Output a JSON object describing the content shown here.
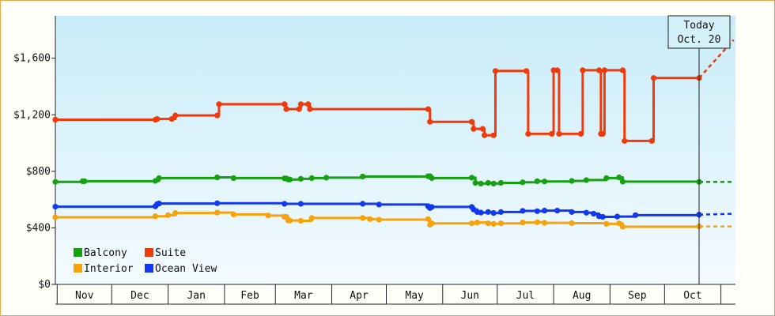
{
  "chart_data": {
    "type": "line",
    "title": "",
    "xlabel": "",
    "ylabel": "",
    "ylim": [
      0,
      1900
    ],
    "y_ticks": [
      {
        "value": 0,
        "label": "$0"
      },
      {
        "value": 400,
        "label": "$400"
      },
      {
        "value": 800,
        "label": "$800"
      },
      {
        "value": 1200,
        "label": "$1,200"
      },
      {
        "value": 1600,
        "label": "$1,600"
      }
    ],
    "x_unit": "day index from Nov 1",
    "xlim": [
      -1,
      373
    ],
    "month_labels": [
      {
        "label": "Nov",
        "start": 0,
        "end": 30
      },
      {
        "label": "Dec",
        "start": 30,
        "end": 61
      },
      {
        "label": "Jan",
        "start": 61,
        "end": 92
      },
      {
        "label": "Feb",
        "start": 92,
        "end": 120
      },
      {
        "label": "Mar",
        "start": 120,
        "end": 151
      },
      {
        "label": "Apr",
        "start": 151,
        "end": 181
      },
      {
        "label": "May",
        "start": 181,
        "end": 212
      },
      {
        "label": "Jun",
        "start": 212,
        "end": 242
      },
      {
        "label": "Jul",
        "start": 242,
        "end": 273
      },
      {
        "label": "Aug",
        "start": 273,
        "end": 304
      },
      {
        "label": "Sep",
        "start": 304,
        "end": 334
      },
      {
        "label": "Oct",
        "start": 334,
        "end": 365
      }
    ],
    "today": {
      "line1": "Today",
      "line2": "Oct. 20",
      "x": 353
    },
    "grid": false,
    "legend_placement": "bottom-left",
    "series": [
      {
        "name": "Suite",
        "color": "#f03a0c",
        "points": [
          [
            -1,
            1165
          ],
          [
            54,
            1165
          ],
          [
            55,
            1170
          ],
          [
            63,
            1170
          ],
          [
            65,
            1195
          ],
          [
            88,
            1195
          ],
          [
            89,
            1275
          ],
          [
            125,
            1275
          ],
          [
            126,
            1240
          ],
          [
            133,
            1240
          ],
          [
            134,
            1275
          ],
          [
            138,
            1275
          ],
          [
            139,
            1240
          ],
          [
            204,
            1240
          ],
          [
            205,
            1150
          ],
          [
            228,
            1150
          ],
          [
            229,
            1100
          ],
          [
            234,
            1100
          ],
          [
            235,
            1055
          ],
          [
            240,
            1055
          ],
          [
            241,
            1510
          ],
          [
            258,
            1510
          ],
          [
            259,
            1065
          ],
          [
            272,
            1065
          ],
          [
            273,
            1515
          ],
          [
            275,
            1515
          ],
          [
            276,
            1065
          ],
          [
            288,
            1065
          ],
          [
            289,
            1515
          ],
          [
            298,
            1515
          ],
          [
            299,
            1065
          ],
          [
            300,
            1065
          ],
          [
            301,
            1515
          ],
          [
            311,
            1515
          ],
          [
            312,
            1015
          ],
          [
            327,
            1015
          ],
          [
            328,
            1460
          ],
          [
            353,
            1460
          ]
        ],
        "markers": [
          -1,
          54,
          55,
          63,
          65,
          88,
          89,
          125,
          126,
          133,
          134,
          138,
          139,
          204,
          205,
          228,
          229,
          234,
          235,
          240,
          241,
          258,
          259,
          272,
          273,
          275,
          276,
          288,
          289,
          298,
          299,
          300,
          301,
          311,
          312,
          327,
          328,
          353
        ],
        "projection": [
          [
            353,
            1460
          ],
          [
            372,
            1730
          ]
        ]
      },
      {
        "name": "Balcony",
        "color": "#16a012",
        "points": [
          [
            -1,
            725
          ],
          [
            14,
            730
          ],
          [
            54,
            732
          ],
          [
            56,
            752
          ],
          [
            88,
            757
          ],
          [
            97,
            752
          ],
          [
            125,
            750
          ],
          [
            127,
            742
          ],
          [
            134,
            747
          ],
          [
            140,
            752
          ],
          [
            148,
            755
          ],
          [
            168,
            763
          ],
          [
            204,
            765
          ],
          [
            206,
            752
          ],
          [
            228,
            755
          ],
          [
            230,
            718
          ],
          [
            233,
            713
          ],
          [
            237,
            718
          ],
          [
            240,
            713
          ],
          [
            244,
            718
          ],
          [
            256,
            722
          ],
          [
            264,
            730
          ],
          [
            268,
            728
          ],
          [
            283,
            732
          ],
          [
            291,
            738
          ],
          [
            302,
            752
          ],
          [
            309,
            757
          ],
          [
            311,
            727
          ],
          [
            353,
            725
          ]
        ],
        "markers": [
          -1,
          14,
          15,
          54,
          56,
          88,
          97,
          125,
          126,
          127,
          128,
          134,
          140,
          148,
          168,
          204,
          205,
          206,
          228,
          230,
          233,
          237,
          240,
          244,
          256,
          264,
          268,
          283,
          291,
          302,
          309,
          311,
          353
        ],
        "projection": [
          [
            353,
            725
          ],
          [
            372,
            725
          ]
        ]
      },
      {
        "name": "Ocean View",
        "color": "#1238f0",
        "points": [
          [
            -1,
            550
          ],
          [
            54,
            552
          ],
          [
            55,
            568
          ],
          [
            56,
            572
          ],
          [
            88,
            574
          ],
          [
            125,
            570
          ],
          [
            134,
            570
          ],
          [
            168,
            570
          ],
          [
            177,
            565
          ],
          [
            204,
            553
          ],
          [
            205,
            540
          ],
          [
            206,
            548
          ],
          [
            228,
            548
          ],
          [
            229,
            530
          ],
          [
            231,
            512
          ],
          [
            233,
            508
          ],
          [
            237,
            512
          ],
          [
            240,
            505
          ],
          [
            244,
            512
          ],
          [
            256,
            520
          ],
          [
            264,
            518
          ],
          [
            268,
            522
          ],
          [
            275,
            522
          ],
          [
            283,
            512
          ],
          [
            291,
            507
          ],
          [
            295,
            500
          ],
          [
            298,
            482
          ],
          [
            300,
            478
          ],
          [
            308,
            480
          ],
          [
            318,
            490
          ],
          [
            353,
            493
          ]
        ],
        "markers": [
          -1,
          54,
          55,
          56,
          88,
          125,
          134,
          168,
          177,
          204,
          205,
          206,
          228,
          229,
          231,
          233,
          237,
          240,
          244,
          256,
          264,
          268,
          275,
          283,
          291,
          295,
          298,
          300,
          308,
          318,
          353
        ],
        "projection": [
          [
            353,
            493
          ],
          [
            372,
            500
          ]
        ]
      },
      {
        "name": "Interior",
        "color": "#f7a20b",
        "points": [
          [
            -1,
            475
          ],
          [
            54,
            482
          ],
          [
            61,
            490
          ],
          [
            65,
            505
          ],
          [
            88,
            508
          ],
          [
            97,
            495
          ],
          [
            116,
            487
          ],
          [
            125,
            478
          ],
          [
            127,
            452
          ],
          [
            134,
            450
          ],
          [
            140,
            470
          ],
          [
            168,
            470
          ],
          [
            172,
            462
          ],
          [
            177,
            458
          ],
          [
            204,
            462
          ],
          [
            205,
            422
          ],
          [
            206,
            432
          ],
          [
            228,
            432
          ],
          [
            231,
            438
          ],
          [
            237,
            432
          ],
          [
            240,
            428
          ],
          [
            244,
            432
          ],
          [
            256,
            438
          ],
          [
            264,
            440
          ],
          [
            268,
            435
          ],
          [
            283,
            433
          ],
          [
            302,
            428
          ],
          [
            309,
            432
          ],
          [
            311,
            408
          ],
          [
            353,
            410
          ]
        ],
        "markers": [
          -1,
          54,
          61,
          65,
          88,
          97,
          116,
          125,
          126,
          127,
          128,
          134,
          140,
          168,
          172,
          177,
          204,
          205,
          206,
          228,
          231,
          237,
          240,
          244,
          256,
          264,
          268,
          283,
          302,
          309,
          311,
          353
        ],
        "projection": [
          [
            353,
            410
          ],
          [
            372,
            410
          ]
        ]
      }
    ],
    "legend": [
      {
        "name": "Balcony",
        "color": "#16a012"
      },
      {
        "name": "Suite",
        "color": "#f03a0c"
      },
      {
        "name": "Interior",
        "color": "#f7a20b"
      },
      {
        "name": "Ocean View",
        "color": "#1238f0"
      }
    ]
  }
}
